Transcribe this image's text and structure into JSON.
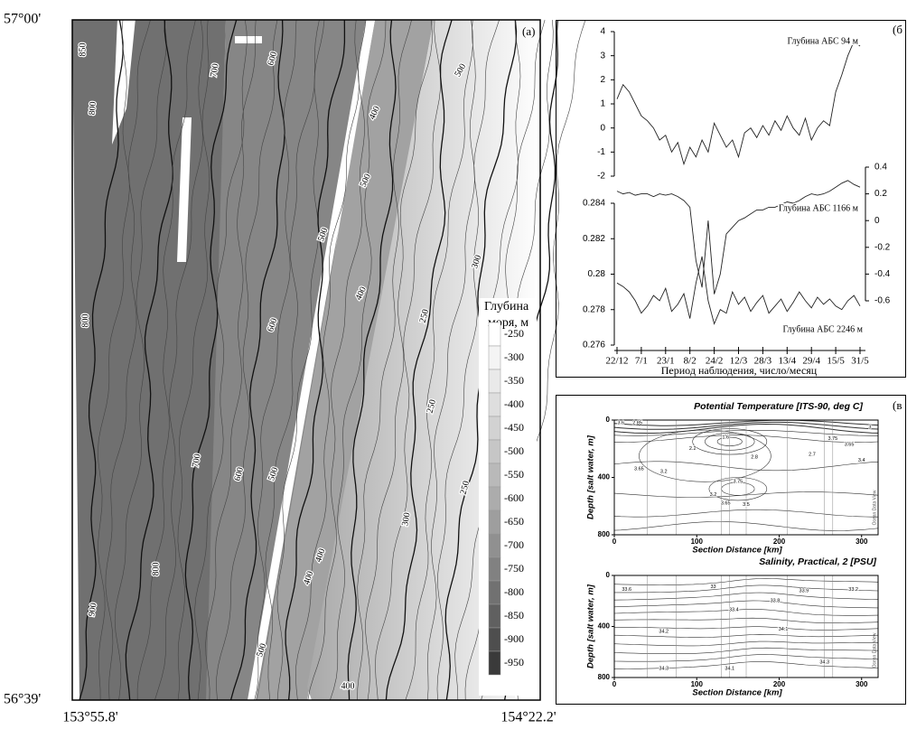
{
  "map": {
    "panel_label": "(a)",
    "lat_top": "57°00'",
    "lat_bottom": "56°39'",
    "lon_left": "153°55.8'",
    "lon_right": "154°22.2'",
    "legend_title": [
      "Глубина",
      "моря, м"
    ],
    "legend_levels": [
      -250,
      -300,
      -350,
      -400,
      -450,
      -500,
      -550,
      -600,
      -650,
      -700,
      -750,
      -800,
      -850,
      -900,
      -950
    ],
    "legend_colors": [
      "#ffffff",
      "#f4f4f4",
      "#e9e9e9",
      "#dedede",
      "#d2d2d2",
      "#c6c6c6",
      "#b9b9b9",
      "#acacac",
      "#9e9e9e",
      "#909090",
      "#818181",
      "#717171",
      "#606060",
      "#4e4e4e",
      "#3a3a3a"
    ],
    "contour_labels": [
      "850",
      "800",
      "700",
      "600",
      "500",
      "400",
      "500",
      "400",
      "300",
      "800",
      "700",
      "600",
      "500",
      "600",
      "500",
      "400",
      "300",
      "250",
      "250",
      "250",
      "800",
      "900",
      "400",
      "400",
      "500"
    ]
  },
  "chart_data": [
    {
      "type": "line",
      "panel_label": "(б",
      "xlabel": "Период наблюдения, число/месяц",
      "x": [
        0,
        4,
        8,
        12,
        16,
        20,
        24,
        28,
        32,
        36,
        40,
        44,
        48,
        52,
        56,
        60,
        64,
        68,
        72,
        76,
        80,
        84,
        88,
        92,
        96,
        100,
        104,
        108,
        112,
        116,
        120,
        124,
        128,
        132,
        136,
        140,
        144,
        148,
        152,
        156,
        160
      ],
      "xlim": [
        0,
        160
      ],
      "xticks": [
        {
          "value": 0,
          "label": "22/12"
        },
        {
          "value": 16,
          "label": "7/1"
        },
        {
          "value": 32,
          "label": "23/1"
        },
        {
          "value": 48,
          "label": "8/2"
        },
        {
          "value": 64,
          "label": "24/2"
        },
        {
          "value": 80,
          "label": "12/3"
        },
        {
          "value": 96,
          "label": "28/3"
        },
        {
          "value": 112,
          "label": "13/4"
        },
        {
          "value": 128,
          "label": "29/4"
        },
        {
          "value": 144,
          "label": "15/5"
        },
        {
          "value": 160,
          "label": "31/5"
        }
      ],
      "ylim": [
        -2,
        4
      ],
      "yticks": [
        -2,
        -1,
        0,
        1,
        2,
        3,
        4
      ],
      "y2lim": [
        -0.6,
        0.4
      ],
      "y2ticks": [
        -0.6,
        -0.4,
        -0.2,
        0,
        0.2,
        0.4
      ],
      "y3lim": [
        0.276,
        0.284
      ],
      "y3ticks": [
        0.276,
        0.278,
        0.28,
        0.282,
        0.284
      ],
      "series": [
        {
          "name": "Глубина АБС 94 м",
          "color": "#222222",
          "axis": "y",
          "values": [
            1.2,
            1.8,
            1.5,
            1.0,
            0.5,
            0.3,
            0.0,
            -0.5,
            -0.3,
            -1.0,
            -0.6,
            -1.5,
            -0.8,
            -1.2,
            -0.5,
            -1.0,
            0.2,
            -0.3,
            -0.8,
            -0.5,
            -1.2,
            -0.2,
            0.0,
            -0.4,
            0.1,
            -0.3,
            0.3,
            -0.1,
            0.5,
            0.0,
            -0.3,
            0.4,
            -0.5,
            0.0,
            0.3,
            0.1,
            1.5,
            2.2,
            3.0,
            3.6,
            3.4
          ]
        },
        {
          "name": "Глубина АБС 1166 м",
          "color": "#222222",
          "axis": "y2",
          "values": [
            0.22,
            0.2,
            0.21,
            0.19,
            0.2,
            0.2,
            0.18,
            0.2,
            0.19,
            0.2,
            0.18,
            0.15,
            0.1,
            -0.3,
            -0.5,
            0.0,
            -0.55,
            -0.4,
            -0.1,
            -0.05,
            0.0,
            0.02,
            0.05,
            0.08,
            0.08,
            0.1,
            0.1,
            0.12,
            0.14,
            0.13,
            0.15,
            0.18,
            0.2,
            0.19,
            0.2,
            0.22,
            0.25,
            0.28,
            0.3,
            0.27,
            0.25
          ]
        },
        {
          "name": "Глубина АБС 2246 м",
          "color": "#222222",
          "axis": "y3",
          "values": [
            0.2795,
            0.2793,
            0.279,
            0.2785,
            0.2778,
            0.2782,
            0.2788,
            0.2785,
            0.2792,
            0.2779,
            0.2783,
            0.2789,
            0.2775,
            0.2795,
            0.281,
            0.2785,
            0.2772,
            0.278,
            0.2778,
            0.279,
            0.2783,
            0.2787,
            0.2779,
            0.2784,
            0.2788,
            0.2778,
            0.2782,
            0.2786,
            0.2779,
            0.2784,
            0.279,
            0.2785,
            0.2781,
            0.2787,
            0.2783,
            0.2786,
            0.2782,
            0.278,
            0.2785,
            0.2788,
            0.2782
          ]
        }
      ]
    },
    {
      "type": "contour",
      "panel_label": "(в",
      "title": "Potential Temperature [ITS-90, deg C]",
      "xlabel": "Section Distance [km]",
      "ylabel": "Depth [salt water, m]",
      "watermark": "Ocean Data View",
      "xlim": [
        0,
        320
      ],
      "xticks": [
        0,
        100,
        200,
        300
      ],
      "ylim": [
        800,
        0
      ],
      "yticks": [
        0,
        400,
        800
      ],
      "contour_labels": [
        3.6,
        2.85,
        1.6,
        2.2,
        3.65,
        3.2,
        3.75,
        2.8,
        2.7,
        3.65,
        3.75,
        3.4,
        3.2,
        3.65,
        3.5,
        3
      ]
    },
    {
      "type": "contour",
      "title": "Salinity, Practical, 2 [PSU]",
      "xlabel": "Section Distance [km]",
      "ylabel": "Depth [salt water, m]",
      "watermark": "Ocean Data View",
      "xlim": [
        0,
        320
      ],
      "xticks": [
        0,
        100,
        200,
        300
      ],
      "ylim": [
        800,
        0
      ],
      "yticks": [
        0,
        400,
        800
      ],
      "contour_labels": [
        33.6,
        33,
        33.2,
        33.8,
        33.9,
        33.4,
        34.2,
        34.1,
        34.1,
        34.3,
        34.3
      ]
    }
  ]
}
